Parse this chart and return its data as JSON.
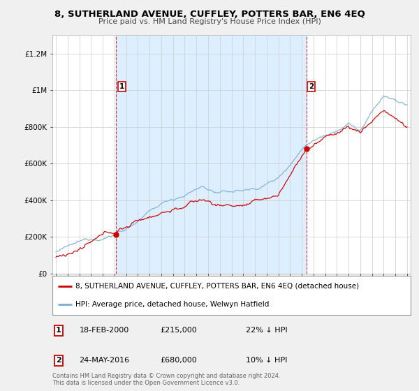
{
  "title": "8, SUTHERLAND AVENUE, CUFFLEY, POTTERS BAR, EN6 4EQ",
  "subtitle": "Price paid vs. HM Land Registry's House Price Index (HPI)",
  "legend_line1": "8, SUTHERLAND AVENUE, CUFFLEY, POTTERS BAR, EN6 4EQ (detached house)",
  "legend_line2": "HPI: Average price, detached house, Welwyn Hatfield",
  "annotation1_label": "1",
  "annotation1_date": "18-FEB-2000",
  "annotation1_price": "£215,000",
  "annotation1_hpi": "22% ↓ HPI",
  "annotation2_label": "2",
  "annotation2_date": "24-MAY-2016",
  "annotation2_price": "£680,000",
  "annotation2_hpi": "10% ↓ HPI",
  "footnote": "Contains HM Land Registry data © Crown copyright and database right 2024.\nThis data is licensed under the Open Government Licence v3.0.",
  "red_line_color": "#cc0000",
  "blue_line_color": "#7aaed6",
  "shade_color": "#ddeeff",
  "bg_color": "#f0f0f0",
  "plot_bg_color": "#ffffff",
  "ylim": [
    0,
    1300000
  ],
  "yticks": [
    0,
    200000,
    400000,
    600000,
    800000,
    1000000,
    1200000
  ],
  "ytick_labels": [
    "£0",
    "£200K",
    "£400K",
    "£600K",
    "£800K",
    "£1M",
    "£1.2M"
  ],
  "point1_x": 2000.13,
  "point1_y": 215000,
  "point2_x": 2016.39,
  "point2_y": 680000,
  "xmin": 1994.7,
  "xmax": 2025.3
}
